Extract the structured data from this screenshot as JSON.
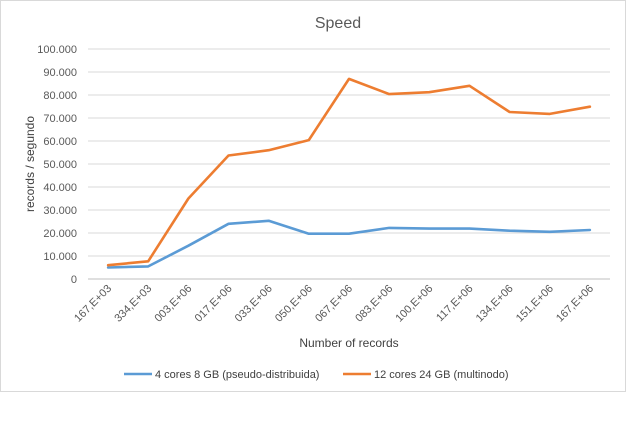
{
  "chart_data": {
    "type": "line",
    "title": "Speed",
    "xlabel": "Number  of records",
    "ylabel": "records / segundo",
    "ylim": [
      0,
      100000
    ],
    "yticks": [
      "0",
      "10.000",
      "20.000",
      "30.000",
      "40.000",
      "50.000",
      "60.000",
      "70.000",
      "80.000",
      "90.000",
      "100.000"
    ],
    "categories": [
      "167,E+03",
      "334,E+03",
      "003,E+06",
      "017,E+06",
      "033,E+06",
      "050,E+06",
      "067,E+06",
      "083,E+06",
      "100,E+06",
      "117,E+06",
      "134,E+06",
      "151,E+06",
      "167,E+06"
    ],
    "grid": true,
    "legend_position": "bottom",
    "series": [
      {
        "name": "4 cores 8 GB (pseudo-distribuida)",
        "color": "#5b9bd5",
        "values": [
          5000,
          5500,
          14500,
          24000,
          25300,
          19700,
          19700,
          22200,
          21900,
          21900,
          21000,
          20500,
          21300
        ]
      },
      {
        "name": "12 cores 24 GB (multinodo)",
        "color": "#ed7d31",
        "values": [
          6000,
          7700,
          35000,
          53700,
          56000,
          60400,
          87000,
          80400,
          81200,
          84000,
          72600,
          71800,
          74900
        ]
      }
    ]
  }
}
